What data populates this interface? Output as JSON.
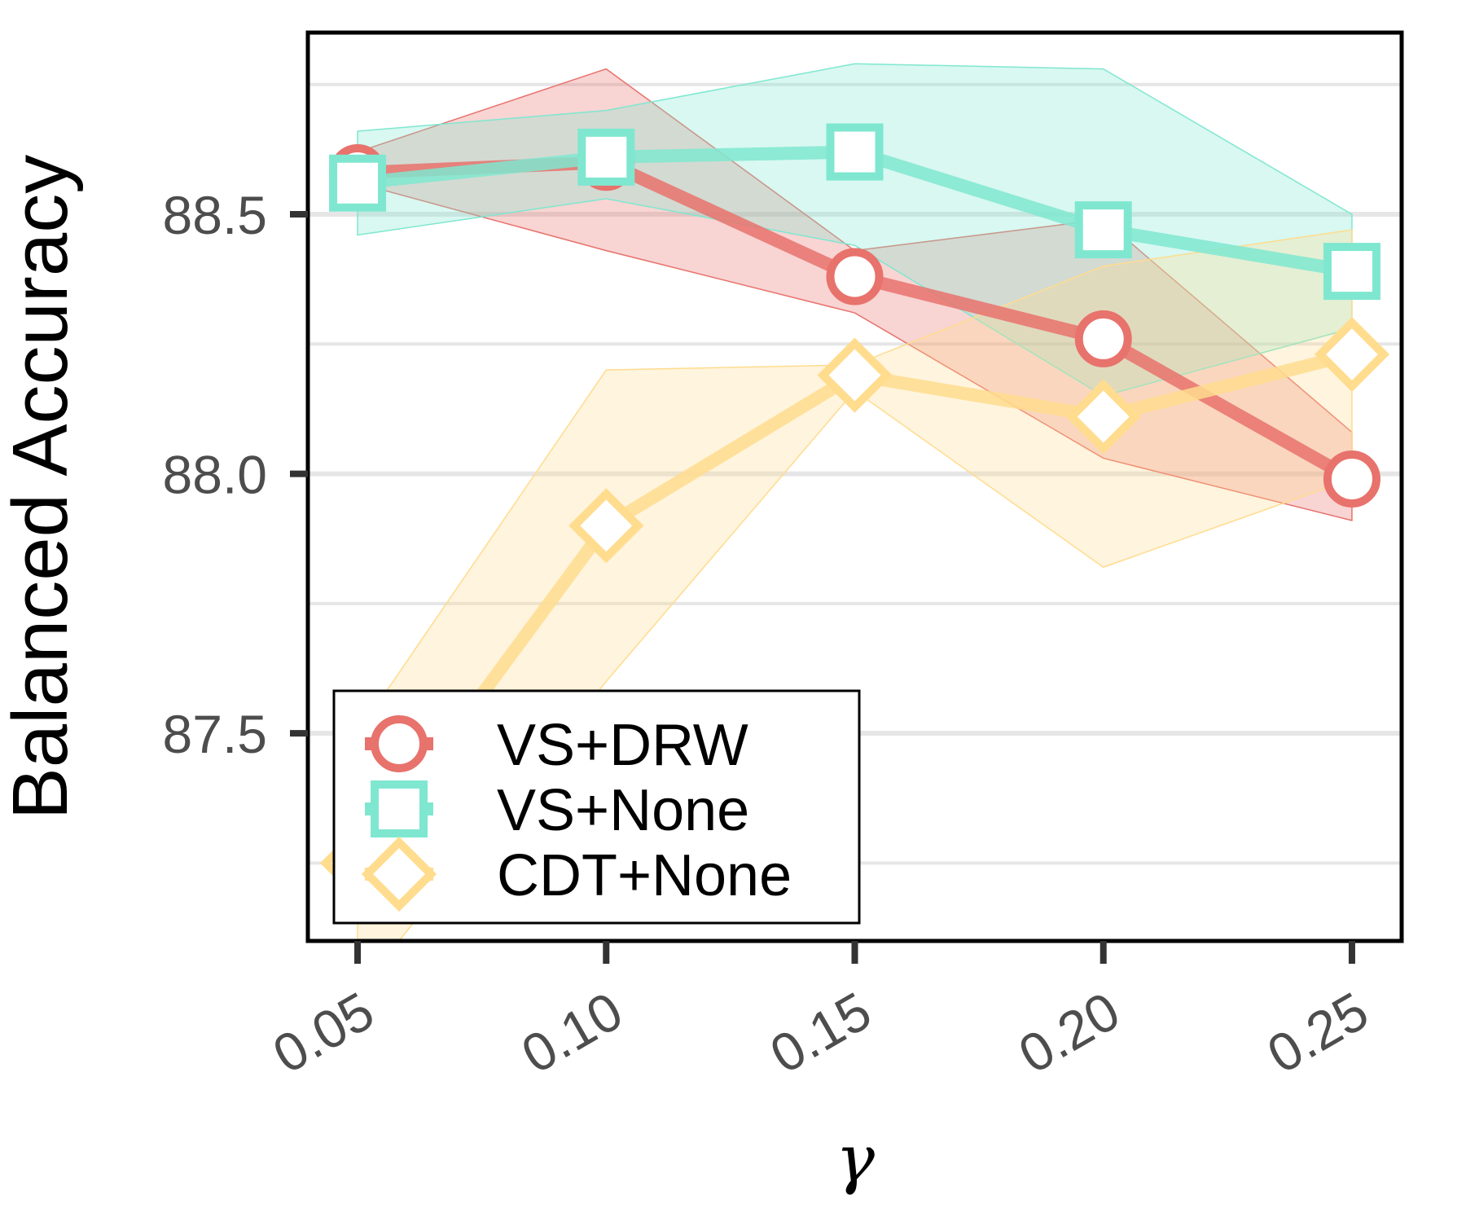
{
  "chart_data": {
    "type": "line",
    "xlabel": "γ",
    "ylabel": "Balanced Accuracy",
    "x": [
      0.05,
      0.1,
      0.15,
      0.2,
      0.25
    ],
    "x_tick_labels": [
      "0.05",
      "0.10",
      "0.15",
      "0.20",
      "0.25"
    ],
    "y_ticks": [
      87.5,
      88.0,
      88.5
    ],
    "y_tick_labels": [
      "87.5",
      "88.0",
      "88.5"
    ],
    "xlim": [
      0.04,
      0.26
    ],
    "ylim": [
      87.1,
      88.85
    ],
    "grid": "horizontal",
    "legend_position": "bottom-left",
    "series": [
      {
        "name": "VS+DRW",
        "color": "#e8726c",
        "marker": "circle",
        "values": [
          88.58,
          88.6,
          88.38,
          88.26,
          87.99
        ],
        "upper": [
          88.62,
          88.78,
          88.43,
          88.49,
          88.08
        ],
        "lower": [
          88.56,
          88.43,
          88.31,
          88.03,
          87.91
        ]
      },
      {
        "name": "VS+None",
        "color": "#7fe7d0",
        "marker": "square",
        "values": [
          88.56,
          88.61,
          88.62,
          88.47,
          88.39
        ],
        "upper": [
          88.66,
          88.7,
          88.79,
          88.78,
          88.5
        ],
        "lower": [
          88.46,
          88.53,
          88.44,
          88.15,
          88.28
        ]
      },
      {
        "name": "CDT+None",
        "color": "#ffdc8e",
        "marker": "diamond",
        "values": [
          87.25,
          87.9,
          88.19,
          88.11,
          88.23
        ],
        "upper": [
          87.5,
          88.2,
          88.21,
          88.4,
          88.47
        ],
        "lower": [
          87.0,
          87.6,
          88.16,
          87.82,
          87.99
        ]
      }
    ]
  }
}
